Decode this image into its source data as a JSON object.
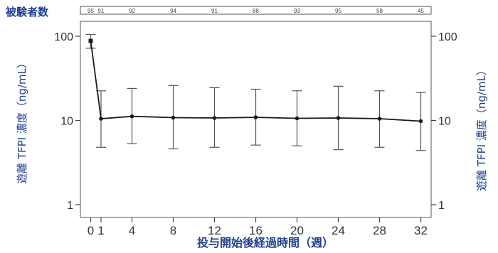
{
  "chart_data": {
    "type": "line",
    "title": "",
    "xlabel": "投与開始後経過時間（週）",
    "ylabel": "遊離 TFPI 濃度（ng/mL）",
    "ylabel_right": "遊離 TFPI 濃度（ng/mL）",
    "yscale": "log",
    "ylim": [
      1,
      100
    ],
    "yticks": [
      1,
      10,
      100
    ],
    "ytick_labels": [
      "1",
      "10",
      "100"
    ],
    "xlim": [
      -1,
      33
    ],
    "xticks": [
      0,
      1,
      4,
      8,
      12,
      16,
      20,
      24,
      28,
      32
    ],
    "xtick_labels": [
      "0",
      "1",
      "4",
      "8",
      "12",
      "16",
      "20",
      "24",
      "28",
      "32"
    ],
    "n_label": "被験者数",
    "n_at_risk": [
      "95",
      "91",
      "92",
      "94",
      "91",
      "88",
      "93",
      "95",
      "58",
      "45"
    ],
    "grid": false,
    "series": [
      {
        "x": [
          0,
          1,
          4,
          8,
          12,
          16,
          20,
          24,
          28,
          32
        ],
        "y": [
          88,
          10.5,
          11.2,
          10.8,
          10.7,
          10.9,
          10.6,
          10.7,
          10.5,
          9.8
        ],
        "y_upper": [
          105,
          22.5,
          24,
          26,
          24.5,
          23.5,
          22.5,
          25.5,
          22.5,
          21.5
        ],
        "y_lower": [
          72,
          4.8,
          5.3,
          4.6,
          4.8,
          5.1,
          5.0,
          4.5,
          4.8,
          4.4
        ]
      }
    ]
  }
}
